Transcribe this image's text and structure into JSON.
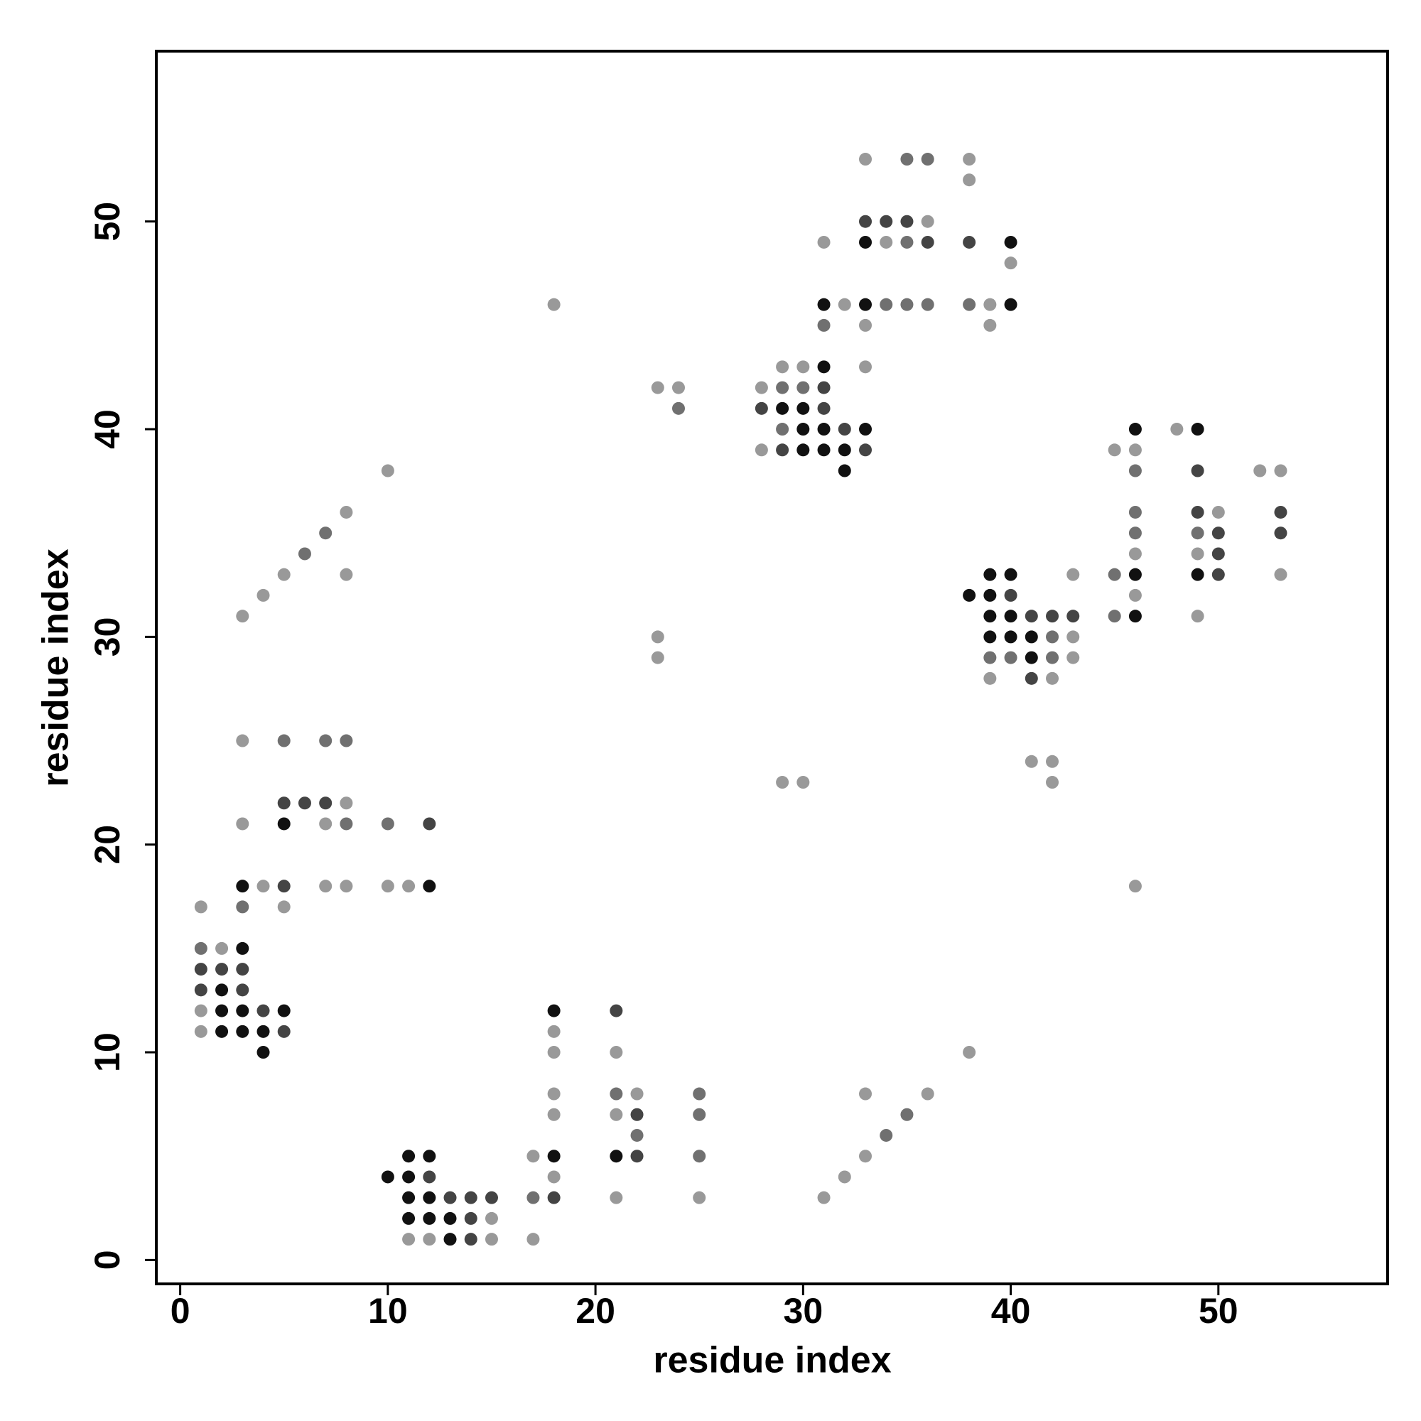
{
  "chart_data": {
    "type": "scatter",
    "xlabel": "residue index",
    "ylabel": "residue index",
    "xlim": [
      -1.15,
      58.15
    ],
    "ylim": [
      -1.15,
      58.2
    ],
    "xticks": [
      0,
      10,
      20,
      30,
      40,
      50
    ],
    "yticks": [
      0,
      10,
      20,
      30,
      40,
      50
    ],
    "x": [
      33,
      35,
      36,
      38,
      38,
      33,
      34,
      35,
      36,
      31,
      33,
      34,
      35,
      36,
      38,
      40,
      40,
      18,
      31,
      32,
      33,
      34,
      35,
      36,
      38,
      39,
      40,
      31,
      33,
      39,
      29,
      30,
      31,
      33,
      23,
      24,
      28,
      29,
      30,
      31,
      24,
      28,
      29,
      30,
      31,
      29,
      30,
      31,
      32,
      33,
      46,
      48,
      49,
      28,
      29,
      30,
      31,
      32,
      33,
      45,
      46,
      10,
      32,
      46,
      49,
      52,
      53,
      8,
      46,
      49,
      50,
      53,
      7,
      46,
      49,
      50,
      53,
      6,
      46,
      49,
      50,
      5,
      8,
      39,
      40,
      43,
      45,
      46,
      49,
      50,
      53,
      4,
      38,
      39,
      40,
      46,
      3,
      39,
      40,
      41,
      42,
      43,
      45,
      46,
      49,
      23,
      39,
      40,
      41,
      42,
      43,
      23,
      39,
      40,
      41,
      42,
      43,
      39,
      41,
      42,
      3,
      5,
      7,
      8,
      41,
      42,
      29,
      30,
      42,
      5,
      6,
      7,
      8,
      3,
      5,
      7,
      8,
      10,
      12,
      3,
      4,
      5,
      7,
      8,
      10,
      11,
      12,
      46,
      1,
      3,
      5,
      1,
      2,
      3,
      1,
      2,
      3,
      1,
      2,
      3,
      1,
      2,
      3,
      4,
      5,
      18,
      21,
      1,
      2,
      3,
      4,
      5,
      18,
      4,
      18,
      21,
      38,
      18,
      21,
      22,
      25,
      33,
      36,
      18,
      21,
      22,
      25,
      35,
      22,
      34,
      11,
      12,
      17,
      18,
      21,
      22,
      25,
      33,
      10,
      11,
      12,
      18,
      32,
      11,
      12,
      13,
      14,
      15,
      17,
      18,
      21,
      25,
      31,
      11,
      12,
      13,
      14,
      15,
      11,
      12,
      13,
      14,
      15,
      17
    ],
    "values": [
      53,
      53,
      53,
      53,
      52,
      50,
      50,
      50,
      50,
      49,
      49,
      49,
      49,
      49,
      49,
      49,
      48,
      46,
      46,
      46,
      46,
      46,
      46,
      46,
      46,
      46,
      46,
      45,
      45,
      45,
      43,
      43,
      43,
      43,
      42,
      42,
      42,
      42,
      42,
      42,
      41,
      41,
      41,
      41,
      41,
      40,
      40,
      40,
      40,
      40,
      40,
      40,
      40,
      39,
      39,
      39,
      39,
      39,
      39,
      39,
      39,
      38,
      38,
      38,
      38,
      38,
      38,
      36,
      36,
      36,
      36,
      36,
      35,
      35,
      35,
      35,
      35,
      34,
      34,
      34,
      34,
      33,
      33,
      33,
      33,
      33,
      33,
      33,
      33,
      33,
      33,
      32,
      32,
      32,
      32,
      32,
      31,
      31,
      31,
      31,
      31,
      31,
      31,
      31,
      31,
      30,
      30,
      30,
      30,
      30,
      30,
      29,
      29,
      29,
      29,
      29,
      29,
      28,
      28,
      28,
      25,
      25,
      25,
      25,
      24,
      24,
      23,
      23,
      23,
      22,
      22,
      22,
      22,
      21,
      21,
      21,
      21,
      21,
      21,
      18,
      18,
      18,
      18,
      18,
      18,
      18,
      18,
      18,
      17,
      17,
      17,
      15,
      15,
      15,
      14,
      14,
      14,
      13,
      13,
      13,
      12,
      12,
      12,
      12,
      12,
      12,
      12,
      11,
      11,
      11,
      11,
      11,
      11,
      10,
      10,
      10,
      10,
      8,
      8,
      8,
      8,
      8,
      8,
      7,
      7,
      7,
      7,
      7,
      6,
      6,
      5,
      5,
      5,
      5,
      5,
      5,
      5,
      5,
      4,
      4,
      4,
      4,
      4,
      3,
      3,
      3,
      3,
      3,
      3,
      3,
      3,
      3,
      3,
      2,
      2,
      2,
      2,
      2,
      1,
      1,
      1,
      1,
      1,
      1
    ],
    "colors": [
      "#999999",
      "#707070",
      "#707070",
      "#999999",
      "#999999",
      "#444444",
      "#444444",
      "#444444",
      "#999999",
      "#999999",
      "#111111",
      "#999999",
      "#707070",
      "#444444",
      "#444444",
      "#111111",
      "#999999",
      "#999999",
      "#111111",
      "#999999",
      "#111111",
      "#707070",
      "#707070",
      "#707070",
      "#707070",
      "#999999",
      "#111111",
      "#707070",
      "#999999",
      "#999999",
      "#999999",
      "#999999",
      "#111111",
      "#999999",
      "#999999",
      "#999999",
      "#999999",
      "#707070",
      "#707070",
      "#444444",
      "#707070",
      "#444444",
      "#111111",
      "#111111",
      "#444444",
      "#707070",
      "#111111",
      "#111111",
      "#444444",
      "#111111",
      "#111111",
      "#999999",
      "#111111",
      "#999999",
      "#444444",
      "#111111",
      "#111111",
      "#111111",
      "#444444",
      "#999999",
      "#999999",
      "#999999",
      "#111111",
      "#707070",
      "#444444",
      "#999999",
      "#999999",
      "#999999",
      "#707070",
      "#444444",
      "#999999",
      "#444444",
      "#707070",
      "#707070",
      "#707070",
      "#444444",
      "#444444",
      "#707070",
      "#999999",
      "#999999",
      "#444444",
      "#999999",
      "#999999",
      "#111111",
      "#111111",
      "#999999",
      "#707070",
      "#111111",
      "#111111",
      "#444444",
      "#999999",
      "#999999",
      "#111111",
      "#111111",
      "#444444",
      "#999999",
      "#999999",
      "#111111",
      "#111111",
      "#444444",
      "#444444",
      "#444444",
      "#707070",
      "#111111",
      "#999999",
      "#999999",
      "#111111",
      "#111111",
      "#111111",
      "#707070",
      "#999999",
      "#999999",
      "#707070",
      "#707070",
      "#111111",
      "#707070",
      "#999999",
      "#999999",
      "#444444",
      "#999999",
      "#999999",
      "#707070",
      "#707070",
      "#707070",
      "#999999",
      "#999999",
      "#999999",
      "#999999",
      "#999999",
      "#444444",
      "#444444",
      "#444444",
      "#999999",
      "#999999",
      "#111111",
      "#999999",
      "#707070",
      "#707070",
      "#444444",
      "#111111",
      "#999999",
      "#444444",
      "#999999",
      "#999999",
      "#999999",
      "#999999",
      "#111111",
      "#999999",
      "#999999",
      "#707070",
      "#999999",
      "#707070",
      "#999999",
      "#111111",
      "#444444",
      "#444444",
      "#444444",
      "#444444",
      "#111111",
      "#444444",
      "#999999",
      "#111111",
      "#111111",
      "#444444",
      "#111111",
      "#111111",
      "#444444",
      "#999999",
      "#111111",
      "#111111",
      "#111111",
      "#444444",
      "#999999",
      "#111111",
      "#999999",
      "#999999",
      "#999999",
      "#999999",
      "#707070",
      "#999999",
      "#707070",
      "#999999",
      "#999999",
      "#999999",
      "#999999",
      "#444444",
      "#707070",
      "#707070",
      "#707070",
      "#707070",
      "#111111",
      "#111111",
      "#999999",
      "#111111",
      "#111111",
      "#444444",
      "#707070",
      "#999999",
      "#111111",
      "#111111",
      "#444444",
      "#999999",
      "#999999",
      "#111111",
      "#111111",
      "#444444",
      "#444444",
      "#444444",
      "#707070",
      "#444444",
      "#999999",
      "#999999",
      "#999999",
      "#111111",
      "#111111",
      "#111111",
      "#444444",
      "#999999",
      "#999999",
      "#999999",
      "#111111",
      "#444444",
      "#999999",
      "#999999"
    ]
  }
}
